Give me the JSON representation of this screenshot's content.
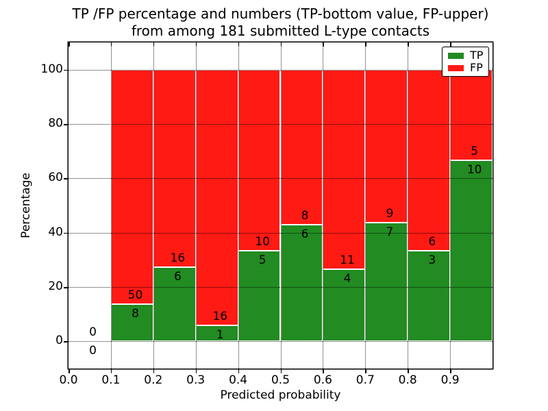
{
  "title": {
    "line1": "TP /FP percentage and numbers (TP-bottom value, FP-upper)",
    "line2": "from among 181 submitted L-type contacts"
  },
  "axes": {
    "xlabel": "Predicted probability",
    "ylabel": "Percentage",
    "x_tick_labels": [
      "0.0",
      "0.1",
      "0.2",
      "0.3",
      "0.4",
      "0.5",
      "0.6",
      "0.7",
      "0.8",
      "0.9"
    ],
    "x_tick_values": [
      0,
      0.1,
      0.2,
      0.3,
      0.4,
      0.5,
      0.6,
      0.7,
      0.8,
      0.9
    ],
    "y_tick_labels": [
      "0",
      "20",
      "40",
      "60",
      "80",
      "100"
    ],
    "y_tick_values": [
      0,
      20,
      40,
      60,
      80,
      100
    ],
    "xlim": [
      0,
      1
    ],
    "ylim": [
      -10,
      110
    ],
    "grid_style": "dotted"
  },
  "legend": {
    "position": "upper right",
    "items": [
      {
        "label": "TP",
        "color": "#228b22"
      },
      {
        "label": "FP",
        "color": "#ff1a14"
      }
    ]
  },
  "colors": {
    "tp": "#228b22",
    "fp": "#ff1a14",
    "text": "#000000",
    "grid": "#000000",
    "bar_edge": "#ffffff",
    "background": "#ffffff"
  },
  "chart_data": {
    "type": "bar",
    "stacked": true,
    "normalized": "percent of contacts per bin; bars stack to 100",
    "title": "TP /FP percentage and numbers (TP-bottom value, FP-upper) from among 181 submitted L-type contacts",
    "xlabel": "Predicted probability",
    "ylabel": "Percentage",
    "total_submitted": 181,
    "bin_width": 0.1,
    "label_convention": "TP-bottom value, FP-upper",
    "bins": [
      {
        "x_start": 0.0,
        "x_end": 0.1,
        "tp_count": 0,
        "fp_count": 0,
        "tp_pct": 0,
        "fp_pct": 0
      },
      {
        "x_start": 0.1,
        "x_end": 0.2,
        "tp_count": 8,
        "fp_count": 50,
        "tp_pct": 13.79,
        "fp_pct": 86.21
      },
      {
        "x_start": 0.2,
        "x_end": 0.3,
        "tp_count": 6,
        "fp_count": 16,
        "tp_pct": 27.27,
        "fp_pct": 72.73
      },
      {
        "x_start": 0.3,
        "x_end": 0.4,
        "tp_count": 1,
        "fp_count": 16,
        "tp_pct": 5.88,
        "fp_pct": 94.12
      },
      {
        "x_start": 0.4,
        "x_end": 0.5,
        "tp_count": 5,
        "fp_count": 10,
        "tp_pct": 33.33,
        "fp_pct": 66.67
      },
      {
        "x_start": 0.5,
        "x_end": 0.6,
        "tp_count": 6,
        "fp_count": 8,
        "tp_pct": 42.86,
        "fp_pct": 57.14
      },
      {
        "x_start": 0.6,
        "x_end": 0.7,
        "tp_count": 4,
        "fp_count": 11,
        "tp_pct": 26.67,
        "fp_pct": 73.33
      },
      {
        "x_start": 0.7,
        "x_end": 0.8,
        "tp_count": 7,
        "fp_count": 9,
        "tp_pct": 43.75,
        "fp_pct": 56.25
      },
      {
        "x_start": 0.8,
        "x_end": 0.9,
        "tp_count": 3,
        "fp_count": 6,
        "tp_pct": 33.33,
        "fp_pct": 66.67
      },
      {
        "x_start": 0.9,
        "x_end": 1.0,
        "tp_count": 10,
        "fp_count": 5,
        "tp_pct": 66.67,
        "fp_pct": 33.33
      }
    ]
  }
}
